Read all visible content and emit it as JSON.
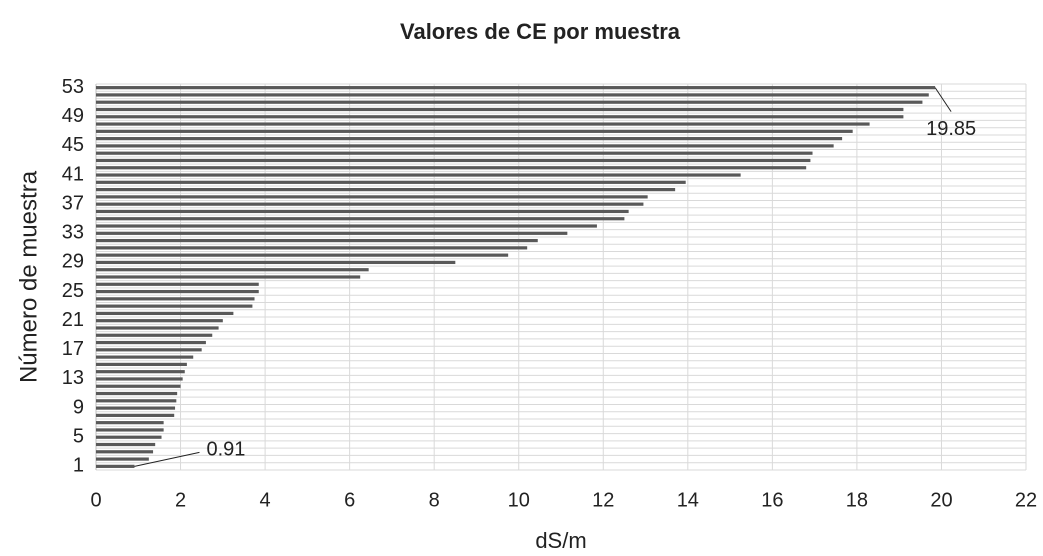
{
  "chart_data": {
    "type": "hbar",
    "title": "Valores de CE por muestra",
    "x_label": "dS/m",
    "y_label": "Número de muestra",
    "categories": [
      "1",
      null,
      null,
      null,
      "5",
      null,
      null,
      null,
      "9",
      null,
      null,
      null,
      "13",
      null,
      null,
      null,
      "17",
      null,
      null,
      null,
      "21",
      null,
      null,
      null,
      "25",
      null,
      null,
      null,
      "29",
      null,
      null,
      null,
      "33",
      null,
      null,
      null,
      "37",
      null,
      null,
      null,
      "41",
      null,
      null,
      null,
      "45",
      null,
      null,
      null,
      "49",
      null,
      null,
      null,
      "53"
    ],
    "values": [
      0.91,
      1.25,
      1.35,
      1.4,
      1.55,
      1.6,
      1.6,
      1.85,
      1.87,
      1.9,
      1.92,
      2.0,
      2.05,
      2.1,
      2.15,
      2.3,
      2.5,
      2.6,
      2.75,
      2.9,
      3.0,
      3.25,
      3.7,
      3.75,
      3.85,
      3.85,
      6.25,
      6.45,
      8.5,
      9.75,
      10.2,
      10.45,
      11.15,
      11.85,
      12.5,
      12.6,
      12.95,
      13.05,
      13.7,
      13.95,
      15.25,
      16.8,
      16.9,
      16.95,
      17.45,
      17.65,
      17.9,
      18.3,
      19.1,
      19.1,
      19.55,
      19.7,
      19.85
    ],
    "value_labels": [
      "0.91",
      null,
      null,
      null,
      null,
      null,
      null,
      null,
      null,
      null,
      null,
      null,
      null,
      null,
      null,
      null,
      null,
      null,
      null,
      null,
      null,
      null,
      null,
      null,
      null,
      null,
      null,
      null,
      null,
      null,
      null,
      null,
      null,
      null,
      null,
      null,
      null,
      null,
      null,
      null,
      null,
      null,
      null,
      null,
      null,
      null,
      null,
      null,
      null,
      null,
      null,
      null,
      "19.85"
    ],
    "color": "#595959",
    "xlim": [
      0,
      22
    ],
    "xticks": [
      0,
      2,
      4,
      6,
      8,
      10,
      12,
      14,
      16,
      18,
      20,
      22
    ],
    "grid": true
  }
}
